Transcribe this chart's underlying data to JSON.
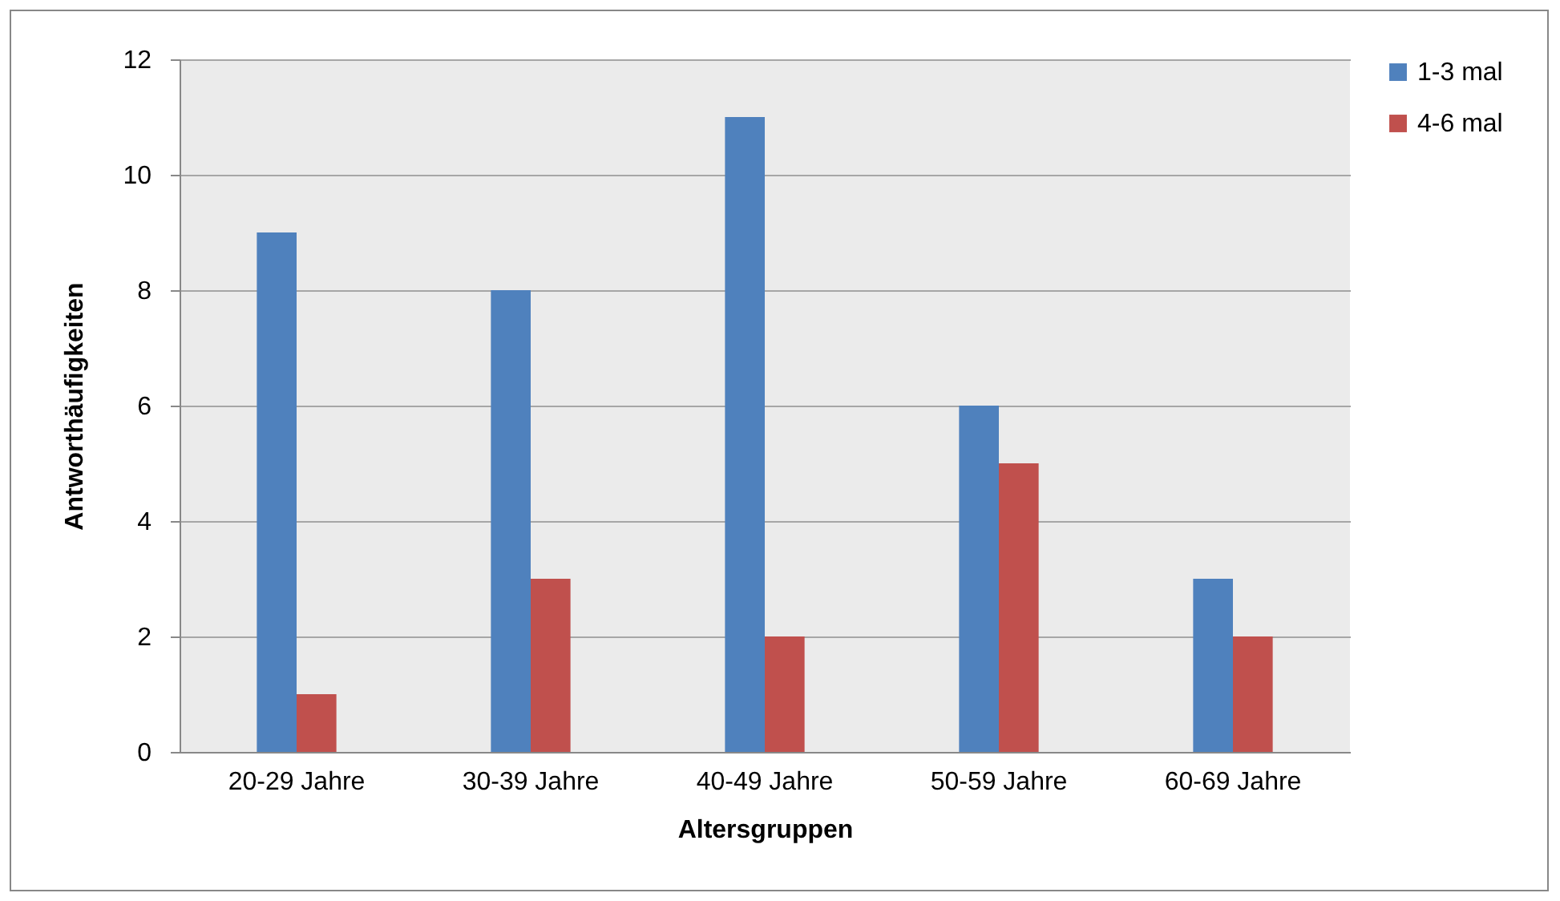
{
  "chart_data": {
    "type": "bar",
    "xlabel": "Altersgruppen",
    "ylabel": "Antworthäufigkeiten",
    "categories": [
      "20-29 Jahre",
      "30-39 Jahre",
      "40-49 Jahre",
      "50-59 Jahre",
      "60-69 Jahre"
    ],
    "series": [
      {
        "name": "1-3 mal",
        "color": "#4f81bd",
        "values": [
          9,
          8,
          11,
          6,
          3
        ]
      },
      {
        "name": "4-6 mal",
        "color": "#c0504d",
        "values": [
          1,
          3,
          2,
          5,
          2
        ]
      }
    ],
    "ylim": [
      0,
      12
    ],
    "yticks": [
      0,
      2,
      4,
      6,
      8,
      10,
      12
    ],
    "grid": "y",
    "legend": "right"
  }
}
